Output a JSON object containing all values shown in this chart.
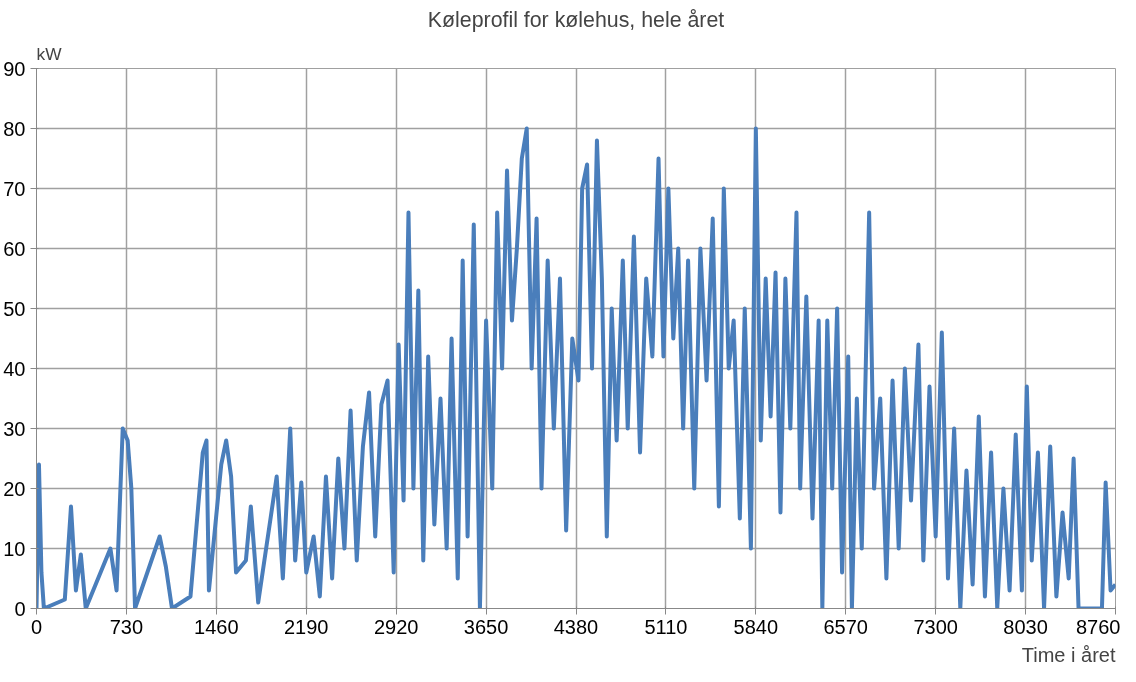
{
  "chart_data": {
    "type": "line",
    "title": "Køleprofil for kølehus, hele året",
    "xlabel": "Time i året",
    "ylabel": "kW",
    "xlim": [
      0,
      8760
    ],
    "xticks": [
      0,
      730,
      1460,
      2190,
      2920,
      3650,
      4380,
      5110,
      5840,
      6570,
      7300,
      8030,
      8760
    ],
    "ylim": [
      0,
      90
    ],
    "yticks": [
      0,
      10,
      20,
      30,
      40,
      50,
      60,
      70,
      80,
      90
    ],
    "grid": true,
    "marker": "none",
    "line_style": "solid",
    "series": [
      {
        "color": "#4a7ebb",
        "x": [
          0,
          20,
          40,
          60,
          230,
          280,
          320,
          360,
          400,
          600,
          650,
          700,
          740,
          770,
          800,
          1000,
          1050,
          1100,
          1250,
          1350,
          1380,
          1400,
          1500,
          1540,
          1580,
          1620,
          1700,
          1740,
          1800,
          1950,
          2000,
          2060,
          2100,
          2150,
          2190,
          2250,
          2300,
          2350,
          2400,
          2450,
          2500,
          2550,
          2600,
          2650,
          2700,
          2750,
          2800,
          2850,
          2900,
          2940,
          2980,
          3020,
          3060,
          3100,
          3140,
          3180,
          3230,
          3280,
          3330,
          3370,
          3420,
          3460,
          3500,
          3550,
          3600,
          3650,
          3700,
          3740,
          3780,
          3820,
          3860,
          3900,
          3940,
          3980,
          4020,
          4060,
          4100,
          4150,
          4200,
          4250,
          4300,
          4350,
          4400,
          4430,
          4470,
          4510,
          4550,
          4590,
          4630,
          4670,
          4710,
          4760,
          4800,
          4850,
          4900,
          4950,
          5000,
          5050,
          5090,
          5130,
          5170,
          5210,
          5250,
          5290,
          5340,
          5390,
          5440,
          5490,
          5540,
          5580,
          5620,
          5660,
          5710,
          5750,
          5800,
          5840,
          5880,
          5920,
          5960,
          6000,
          6040,
          6080,
          6120,
          6170,
          6200,
          6250,
          6300,
          6350,
          6380,
          6420,
          6460,
          6500,
          6540,
          6590,
          6620,
          6660,
          6700,
          6760,
          6800,
          6850,
          6900,
          6950,
          7000,
          7050,
          7100,
          7160,
          7200,
          7250,
          7300,
          7350,
          7400,
          7450,
          7500,
          7550,
          7600,
          7650,
          7700,
          7750,
          7800,
          7850,
          7900,
          7950,
          8000,
          8040,
          8080,
          8130,
          8180,
          8230,
          8280,
          8330,
          8380,
          8420,
          8460,
          8650,
          8680,
          8720,
          8760
        ],
        "values": [
          0,
          24,
          6,
          0,
          1.5,
          17,
          3,
          9,
          0,
          10,
          3,
          30,
          28,
          20,
          0,
          12,
          7,
          0,
          2,
          26,
          28,
          3,
          24,
          28,
          22,
          6,
          8,
          17,
          1,
          22,
          5,
          30,
          8,
          21,
          6,
          12,
          2,
          22,
          5,
          25,
          10,
          33,
          8,
          27,
          36,
          12,
          34,
          38,
          6,
          44,
          18,
          66,
          20,
          53,
          8,
          42,
          14,
          35,
          10,
          45,
          5,
          58,
          12,
          64,
          0,
          48,
          20,
          66,
          40,
          73,
          48,
          60,
          75,
          80,
          40,
          65,
          20,
          58,
          30,
          55,
          13,
          45,
          38,
          70,
          74,
          40,
          78,
          55,
          12,
          50,
          28,
          58,
          30,
          62,
          26,
          55,
          42,
          75,
          42,
          70,
          45,
          60,
          30,
          58,
          20,
          60,
          38,
          65,
          17,
          70,
          40,
          48,
          15,
          50,
          10,
          80,
          28,
          55,
          32,
          56,
          16,
          55,
          30,
          66,
          20,
          52,
          15,
          48,
          0,
          48,
          20,
          50,
          6,
          42,
          0,
          35,
          10,
          66,
          20,
          35,
          5,
          38,
          10,
          40,
          18,
          44,
          8,
          37,
          12,
          46,
          5,
          30,
          0,
          23,
          4,
          32,
          2,
          26,
          0,
          20,
          3,
          29,
          3,
          37,
          8,
          26,
          0,
          27,
          2,
          16,
          5,
          25,
          0,
          0,
          21,
          3,
          4
        ]
      }
    ]
  }
}
